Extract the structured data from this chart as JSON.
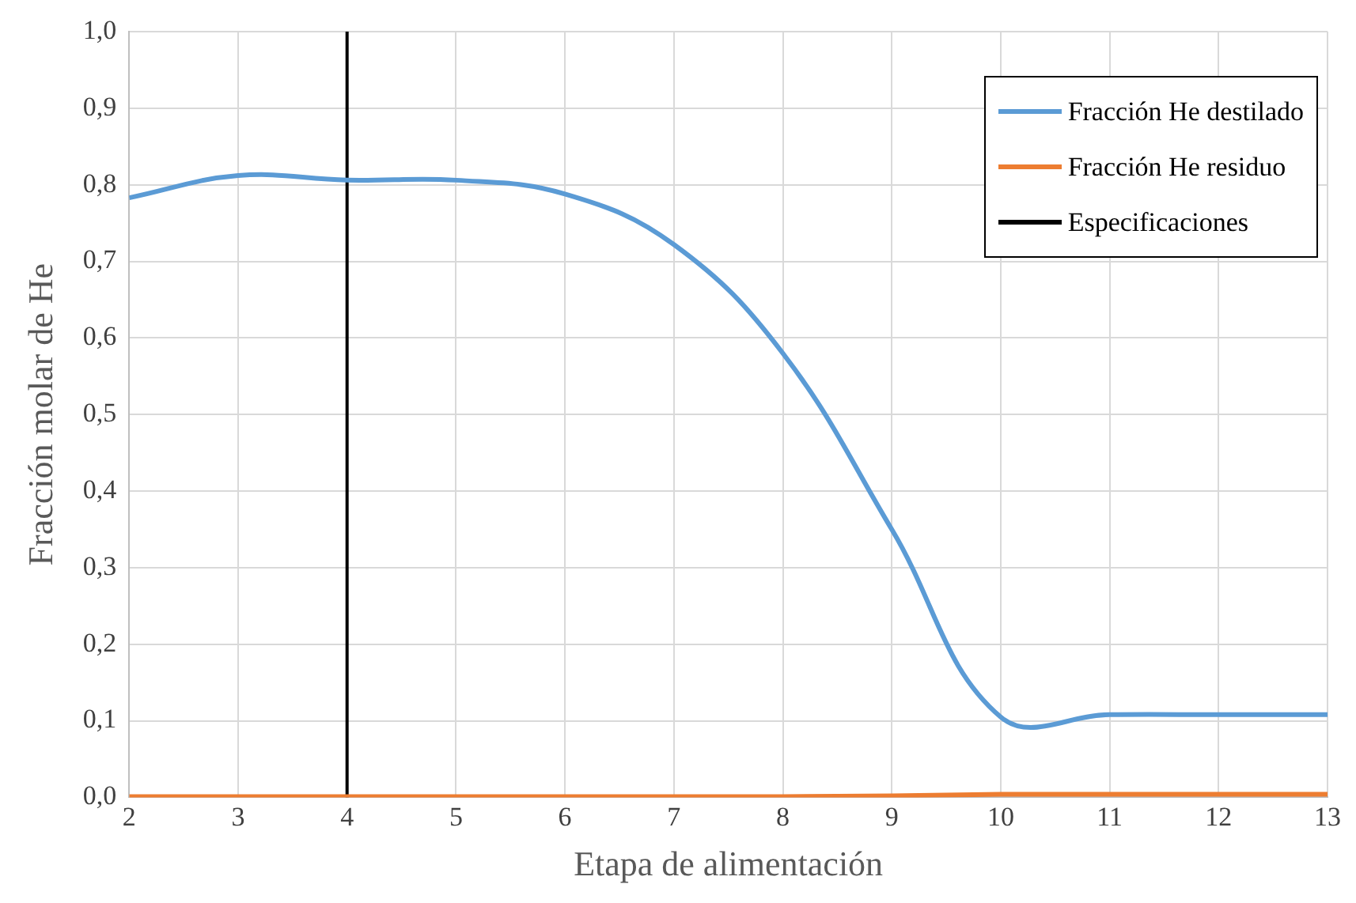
{
  "chart_data": {
    "type": "line",
    "xlabel": "Etapa de alimentación",
    "ylabel": "Fracción molar de He",
    "x": [
      2,
      3,
      4,
      5,
      6,
      7,
      8,
      9,
      10,
      11,
      12,
      13
    ],
    "series": [
      {
        "name": "Fracción He destilado",
        "color": "#5b9bd5",
        "values": [
          0.783,
          0.812,
          0.806,
          0.806,
          0.788,
          0.722,
          0.58,
          0.35,
          0.105,
          0.108,
          0.108,
          0.108
        ]
      },
      {
        "name": "Fracción He residuo",
        "color": "#ed7d31",
        "values": [
          0.001,
          0.001,
          0.001,
          0.001,
          0.001,
          0.001,
          0.001,
          0.002,
          0.004,
          0.004,
          0.004,
          0.004
        ]
      },
      {
        "name": "Especificaciones",
        "color": "#000000",
        "x": [
          4,
          4
        ],
        "values": [
          0,
          1
        ]
      }
    ],
    "xlim": [
      2,
      13
    ],
    "xticks": [
      2,
      3,
      4,
      5,
      6,
      7,
      8,
      9,
      10,
      11,
      12,
      13
    ],
    "ylim": [
      0,
      1
    ],
    "yticks": [
      {
        "value": 0,
        "label": "0,0"
      },
      {
        "value": 0.1,
        "label": "0,1"
      },
      {
        "value": 0.2,
        "label": "0,2"
      },
      {
        "value": 0.3,
        "label": "0,3"
      },
      {
        "value": 0.4,
        "label": "0,4"
      },
      {
        "value": 0.5,
        "label": "0,5"
      },
      {
        "value": 0.6,
        "label": "0,6"
      },
      {
        "value": 0.7,
        "label": "0,7"
      },
      {
        "value": 0.8,
        "label": "0,8"
      },
      {
        "value": 0.9,
        "label": "0,9"
      },
      {
        "value": 1,
        "label": "1,0"
      }
    ],
    "grid": true,
    "legend": "top right",
    "marker": "none",
    "line_style": "solid"
  }
}
